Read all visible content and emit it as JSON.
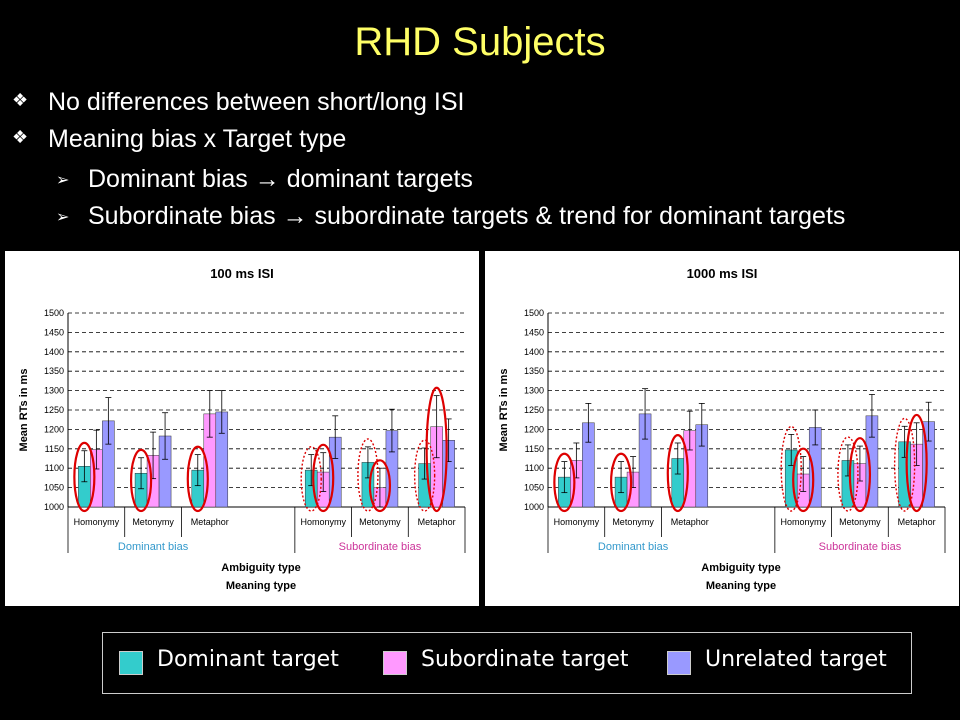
{
  "slide": {
    "title": "RHD Subjects",
    "bullets": [
      {
        "marker": "❖",
        "text": "No differences between short/long ISI"
      },
      {
        "marker": "❖",
        "text": "Meaning bias x Target type"
      }
    ],
    "sub_bullets": [
      {
        "marker": "➢",
        "text": "Dominant bias → dominant targets"
      },
      {
        "marker": "➢",
        "text": "Subordinate bias → subordinate targets & trend for dominant targets"
      }
    ]
  },
  "legend": [
    {
      "label": "Dominant target",
      "color": "#33cccc"
    },
    {
      "label": "Subordinate target",
      "color": "#ff99ff"
    },
    {
      "label": "Unrelated target",
      "color": "#9999ff"
    }
  ],
  "colors": {
    "dominant": "#33cccc",
    "subordinate": "#ff99ff",
    "unrelated": "#9999ff",
    "dominant_bias_label": "#3399cc",
    "subordinate_bias_label": "#cc3399",
    "highlight": "#dd0000"
  },
  "chart_data": [
    {
      "type": "bar",
      "title": "100 ms ISI",
      "ylabel": "Mean RTs in ms",
      "xlabel": "Ambiguity type",
      "xlabel2": "Meaning type",
      "ylim": [
        1000,
        1500
      ],
      "yticks": [
        1000,
        1050,
        1100,
        1150,
        1200,
        1250,
        1300,
        1350,
        1400,
        1450,
        1500
      ],
      "groups": [
        {
          "label": "Dominant bias",
          "categories": [
            "Homonymy",
            "Metonymy",
            "Metaphor"
          ]
        },
        {
          "label": "Subordinate bias",
          "categories": [
            "Homonymy",
            "Metonymy",
            "Metaphor"
          ]
        }
      ],
      "series": [
        {
          "name": "Dominant target",
          "values": [
            1105,
            1087,
            1095,
            1095,
            1115,
            1112
          ],
          "err": [
            40,
            40,
            40,
            40,
            40,
            40
          ]
        },
        {
          "name": "Subordinate target",
          "values": [
            1148,
            1133,
            1240,
            1090,
            1050,
            1207
          ],
          "err": [
            50,
            60,
            60,
            50,
            50,
            80
          ]
        },
        {
          "name": "Unrelated target",
          "values": [
            1222,
            1183,
            1245,
            1180,
            1197,
            1172
          ],
          "err": [
            60,
            60,
            55,
            55,
            55,
            55
          ]
        }
      ]
    },
    {
      "type": "bar",
      "title": "1000 ms ISI",
      "ylabel": "Mean RTs in ms",
      "xlabel": "Ambiguity type",
      "xlabel2": "Meaning type",
      "ylim": [
        1000,
        1500
      ],
      "yticks": [
        1000,
        1050,
        1100,
        1150,
        1200,
        1250,
        1300,
        1350,
        1400,
        1450,
        1500
      ],
      "groups": [
        {
          "label": "Dominant bias",
          "categories": [
            "Homonymy",
            "Metonymy",
            "Metaphor"
          ]
        },
        {
          "label": "Subordinate bias",
          "categories": [
            "Homonymy",
            "Metonymy",
            "Metaphor"
          ]
        }
      ],
      "series": [
        {
          "name": "Dominant target",
          "values": [
            1077,
            1077,
            1125,
            1147,
            1120,
            1168
          ],
          "err": [
            40,
            40,
            40,
            40,
            40,
            40
          ]
        },
        {
          "name": "Subordinate target",
          "values": [
            1120,
            1090,
            1197,
            1085,
            1112,
            1162
          ],
          "err": [
            45,
            40,
            50,
            45,
            45,
            55
          ]
        },
        {
          "name": "Unrelated target",
          "values": [
            1217,
            1240,
            1212,
            1205,
            1235,
            1220
          ],
          "err": [
            50,
            65,
            55,
            45,
            55,
            50
          ]
        }
      ]
    }
  ]
}
